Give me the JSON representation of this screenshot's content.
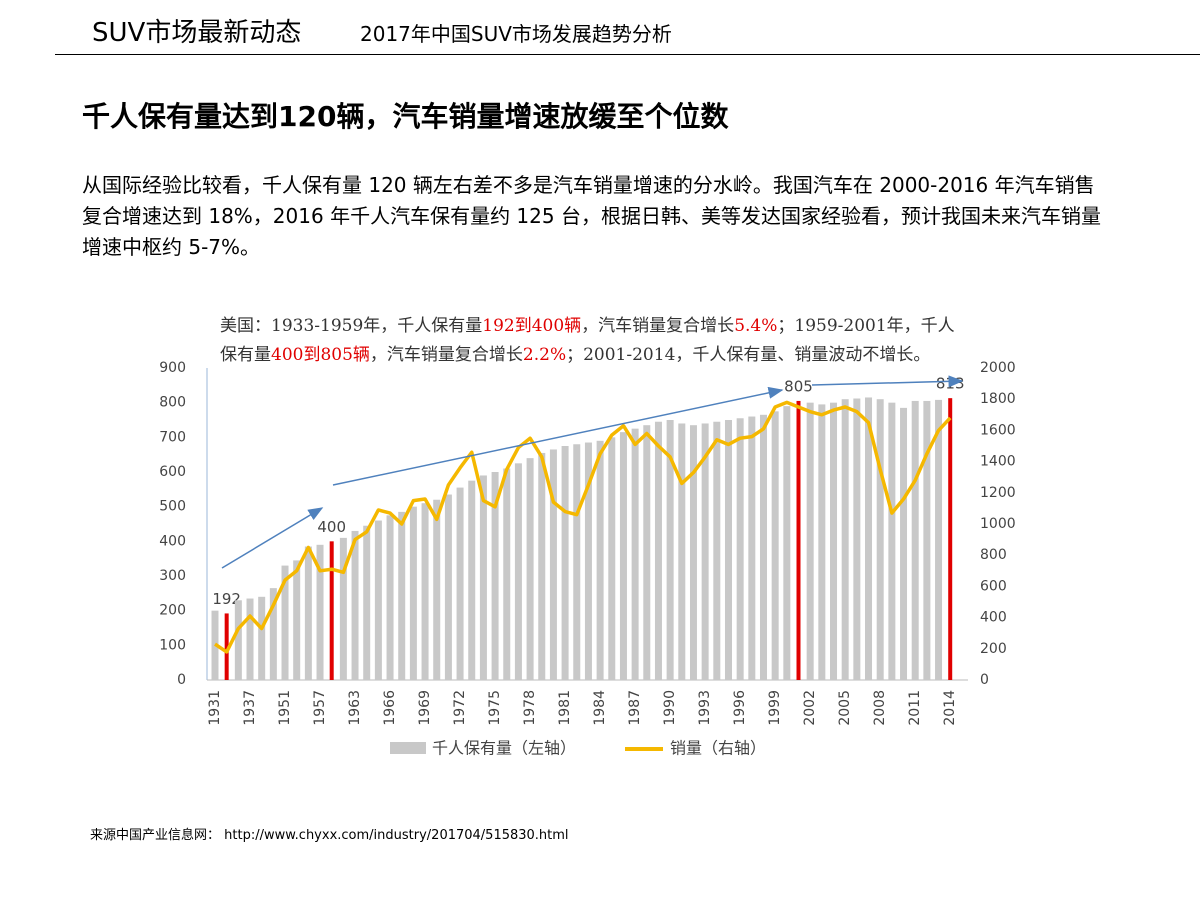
{
  "header": {
    "title": "SUV市场最新动态",
    "subtitle": "2017年中国SUV市场发展趋势分析"
  },
  "headline": "千人保有量达到120辆，汽车销量增速放缓至个位数",
  "body": "从国际经验比较看，千人保有量 120 辆左右差不多是汽车销量增速的分水岭。我国汽车在 2000-2016 年汽车销售复合增速达到 18%，2016 年千人汽车保有量约 125 台，根据日韩、美等发达国家经验看，预计我国未来汽车销量增速中枢约 5-7%。",
  "source": "来源中国产业信息网： http://www.chyxx.com/industry/201704/515830.html",
  "chart_data": {
    "type": "bar-line",
    "annotation": [
      {
        "text": "美国：1933-1959年，千人保有量"
      },
      {
        "text": "192到400辆",
        "highlight": true
      },
      {
        "text": "，汽车销量复合增长"
      },
      {
        "text": "5.4%",
        "highlight": true
      },
      {
        "text": "；1959-2001年，千人保有量"
      },
      {
        "text": "400到805辆",
        "highlight": true
      },
      {
        "text": "，汽车销量复合增长"
      },
      {
        "text": "2.2%",
        "highlight": true
      },
      {
        "text": "；2001-2014，千人保有量、销量波动不增长。"
      }
    ],
    "categories": [
      "1931",
      null,
      null,
      "1937",
      null,
      null,
      "1951",
      null,
      null,
      "1957",
      null,
      null,
      "1963",
      null,
      null,
      "1966",
      null,
      null,
      "1969",
      null,
      null,
      "1972",
      null,
      null,
      "1975",
      null,
      null,
      "1978",
      null,
      null,
      "1981",
      null,
      null,
      "1984",
      null,
      null,
      "1987",
      null,
      null,
      "1990",
      null,
      null,
      "1993",
      null,
      null,
      "1996",
      null,
      null,
      "1999",
      null,
      null,
      "2002",
      null,
      null,
      "2005",
      null,
      null,
      "2008",
      null,
      null,
      "2011",
      null,
      null,
      "2014"
    ],
    "series": [
      {
        "name": "千人保有量（左轴）",
        "color": "#c8c8c8",
        "axis": "y",
        "values": [
          200,
          192,
          230,
          235,
          240,
          265,
          330,
          345,
          385,
          390,
          400,
          410,
          430,
          445,
          460,
          475,
          485,
          500,
          510,
          520,
          535,
          555,
          575,
          590,
          600,
          610,
          625,
          640,
          655,
          665,
          675,
          680,
          685,
          690,
          700,
          715,
          725,
          735,
          745,
          750,
          740,
          735,
          740,
          745,
          750,
          755,
          760,
          765,
          775,
          790,
          805,
          800,
          795,
          800,
          810,
          812,
          815,
          810,
          800,
          785,
          805,
          805,
          808,
          813
        ]
      },
      {
        "name": "销量（右轴）",
        "color": "#f5b800",
        "axis": "y2",
        "values": [
          230,
          180,
          330,
          410,
          330,
          480,
          640,
          700,
          850,
          700,
          710,
          690,
          900,
          950,
          1090,
          1070,
          1000,
          1150,
          1160,
          1030,
          1250,
          1360,
          1460,
          1150,
          1110,
          1350,
          1490,
          1550,
          1430,
          1140,
          1080,
          1060,
          1250,
          1450,
          1570,
          1630,
          1510,
          1580,
          1500,
          1430,
          1260,
          1330,
          1430,
          1540,
          1510,
          1550,
          1560,
          1610,
          1750,
          1780,
          1750,
          1720,
          1700,
          1730,
          1750,
          1720,
          1650,
          1350,
          1070,
          1160,
          1280,
          1450,
          1600,
          1680
        ]
      }
    ],
    "highlight": {
      "indices": [
        1,
        10,
        50,
        63
      ],
      "color": "#e00000"
    },
    "ylim": [
      0,
      900
    ],
    "yticks": [
      0,
      100,
      200,
      300,
      400,
      500,
      600,
      700,
      800,
      900
    ],
    "y2lim": [
      0,
      2000
    ],
    "y2ticks": [
      0,
      200,
      400,
      600,
      800,
      1000,
      1200,
      1400,
      1600,
      1800,
      2000
    ]
  }
}
